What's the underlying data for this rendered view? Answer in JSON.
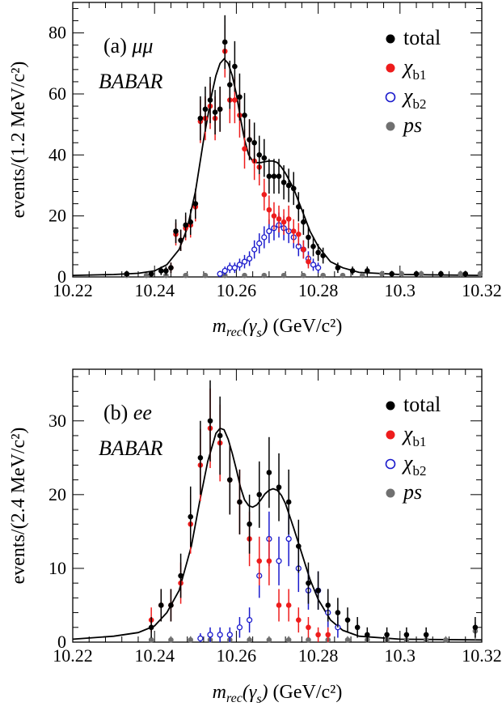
{
  "chart_data": [
    {
      "type": "scatter",
      "panel_label": "(a)",
      "panel_channel": "μμ",
      "experiment": "BABAR",
      "xlabel_var": "m",
      "xlabel_sub": "rec",
      "xlabel_arg": "(γ",
      "xlabel_arg_sub": "s",
      "xlabel_close": ")",
      "xlabel_unit": "(GeV/c²)",
      "ylabel": "events/(1.2 MeV/c²)",
      "xlim": [
        10.22,
        10.32
      ],
      "ylim": [
        0,
        90
      ],
      "xticks": [
        10.22,
        10.24,
        10.26,
        10.28,
        10.3,
        10.32
      ],
      "xtick_labels": [
        "10.22",
        "10.24",
        "10.26",
        "10.28",
        "10.3",
        "10.32"
      ],
      "yticks": [
        0,
        20,
        40,
        60,
        80
      ],
      "ytick_labels": [
        "0",
        "20",
        "40",
        "60",
        "80"
      ],
      "legend": [
        {
          "label": "total",
          "sub": "",
          "color": "#000000",
          "style": "filled"
        },
        {
          "label": "χ",
          "sub": "b1",
          "color": "#ee1c1c",
          "style": "filled"
        },
        {
          "label": "χ",
          "sub": "b2",
          "color": "#1a1acc",
          "style": "open"
        },
        {
          "label": "ps",
          "sub": "",
          "color": "#707070",
          "style": "filled"
        }
      ],
      "series": [
        {
          "name": "total",
          "style": "filled",
          "color": "#000000",
          "x": [
            10.2332,
            10.2392,
            10.2416,
            10.2428,
            10.244,
            10.2452,
            10.2464,
            10.2476,
            10.2488,
            10.25,
            10.2512,
            10.2524,
            10.2536,
            10.2548,
            10.256,
            10.2572,
            10.2584,
            10.2596,
            10.2608,
            10.262,
            10.2632,
            10.2644,
            10.2656,
            10.2668,
            10.268,
            10.2692,
            10.2704,
            10.2716,
            10.2728,
            10.274,
            10.2752,
            10.2764,
            10.2776,
            10.2788,
            10.28,
            10.2812,
            10.2848,
            10.2884,
            10.292,
            10.298,
            10.304,
            10.31,
            10.316
          ],
          "y": [
            1,
            1,
            2,
            2,
            3,
            15,
            12,
            17,
            18,
            24,
            52,
            55,
            58,
            54,
            55,
            77,
            63,
            69,
            59,
            53,
            45,
            44,
            40,
            39,
            33,
            33,
            33,
            31,
            30,
            29,
            23,
            18,
            13,
            10,
            8,
            7,
            3,
            2,
            2,
            1,
            1,
            1,
            1
          ],
          "err": [
            1.0,
            1.0,
            1.4,
            1.4,
            1.7,
            3.9,
            3.5,
            4.1,
            4.2,
            4.9,
            7.2,
            7.4,
            7.6,
            7.3,
            7.4,
            8.8,
            7.9,
            8.3,
            7.7,
            7.3,
            6.7,
            6.6,
            6.3,
            6.2,
            5.7,
            5.7,
            5.7,
            5.6,
            5.5,
            5.4,
            4.8,
            4.2,
            3.6,
            3.2,
            2.8,
            2.6,
            1.7,
            1.4,
            1.4,
            1.0,
            1.0,
            1.0,
            1.0
          ]
        },
        {
          "name": "χ",
          "style": "filled",
          "color": "#ee1c1c",
          "x": [
            10.244,
            10.2452,
            10.2464,
            10.2476,
            10.2488,
            10.25,
            10.2512,
            10.2524,
            10.2536,
            10.2548,
            10.256,
            10.2572,
            10.2584,
            10.2596,
            10.2608,
            10.262,
            10.2632,
            10.2644,
            10.2656,
            10.2668,
            10.268,
            10.2692,
            10.2704,
            10.2716,
            10.2728,
            10.274,
            10.2752,
            10.2764,
            10.2776
          ],
          "y": [
            3,
            14,
            12,
            16,
            17,
            23,
            51,
            52,
            56,
            52,
            55,
            74,
            58,
            58,
            53,
            42,
            45,
            38,
            36,
            27,
            22,
            20,
            19,
            18,
            19,
            15,
            14,
            9,
            5
          ],
          "err": [
            1.7,
            3.7,
            3.5,
            4.0,
            4.1,
            4.8,
            7.1,
            7.2,
            7.5,
            7.2,
            7.4,
            8.6,
            7.6,
            7.6,
            7.3,
            6.5,
            6.7,
            6.2,
            6.0,
            5.2,
            4.7,
            4.5,
            4.4,
            4.2,
            4.4,
            3.9,
            3.7,
            3.0,
            2.2
          ]
        },
        {
          "name": "χ",
          "style": "open",
          "color": "#1a1acc",
          "x": [
            10.256,
            10.2572,
            10.2584,
            10.2596,
            10.2608,
            10.262,
            10.2632,
            10.2644,
            10.2656,
            10.2668,
            10.268,
            10.2692,
            10.2704,
            10.2716,
            10.2728,
            10.274,
            10.2752,
            10.2764,
            10.2776,
            10.2788,
            10.28
          ],
          "y": [
            1,
            2,
            3,
            3,
            4,
            5,
            6,
            9,
            11,
            13,
            15,
            16,
            17,
            16,
            15,
            13,
            10,
            9,
            6,
            4,
            3
          ],
          "err": [
            1.0,
            1.4,
            1.7,
            1.7,
            2.0,
            2.2,
            2.4,
            3.0,
            3.3,
            3.6,
            3.9,
            4.0,
            4.1,
            4.0,
            3.9,
            3.6,
            3.2,
            3.0,
            2.4,
            2.0,
            1.7
          ]
        },
        {
          "name": "ps",
          "style": "filled",
          "color": "#707070",
          "x": [
            10.2332,
            10.238,
            10.2428,
            10.2476,
            10.2524,
            10.2572,
            10.262,
            10.2668,
            10.2716,
            10.2764,
            10.2812,
            10.286,
            10.2908,
            10.2956,
            10.3004,
            10.3052,
            10.31,
            10.3148,
            10.3196
          ],
          "y": [
            0.5,
            0.5,
            0.5,
            0.5,
            0.5,
            0.5,
            0.5,
            0.5,
            0.5,
            0.5,
            0.5,
            0.5,
            0.5,
            1,
            1,
            1,
            1,
            1,
            1
          ],
          "err": [
            0.7,
            0.7,
            0.7,
            0.7,
            0.7,
            0.7,
            0.7,
            0.7,
            0.7,
            0.7,
            0.7,
            0.7,
            0.7,
            1.0,
            1.0,
            1.0,
            1.0,
            1.0,
            1.0
          ]
        }
      ],
      "fit": {
        "x": [
          10.22,
          10.23,
          10.236,
          10.24,
          10.243,
          10.246,
          10.248,
          10.25,
          10.252,
          10.254,
          10.255,
          10.256,
          10.257,
          10.258,
          10.259,
          10.26,
          10.261,
          10.262,
          10.263,
          10.264,
          10.265,
          10.266,
          10.267,
          10.268,
          10.269,
          10.27,
          10.271,
          10.272,
          10.274,
          10.276,
          10.278,
          10.28,
          10.283,
          10.286,
          10.29,
          10.3,
          10.32
        ],
        "y": [
          0.5,
          0.8,
          1.2,
          2,
          4,
          9,
          16,
          28,
          45,
          60,
          66,
          70,
          71.5,
          70,
          66,
          60,
          52,
          45,
          40,
          38,
          37.5,
          37.5,
          37.8,
          38,
          38,
          37.5,
          36,
          34,
          29,
          22,
          15,
          10,
          5,
          3,
          1.5,
          0.8,
          0.5
        ]
      }
    },
    {
      "type": "scatter",
      "panel_label": "(b)",
      "panel_channel": "ee",
      "experiment": "BABAR",
      "xlabel_var": "m",
      "xlabel_sub": "rec",
      "xlabel_arg": "(γ",
      "xlabel_arg_sub": "s",
      "xlabel_close": ")",
      "xlabel_unit": "(GeV/c²)",
      "ylabel": "events/(2.4 MeV/c²)",
      "xlim": [
        10.22,
        10.32
      ],
      "ylim": [
        0,
        37
      ],
      "xticks": [
        10.22,
        10.24,
        10.26,
        10.28,
        10.3,
        10.32
      ],
      "xtick_labels": [
        "10.22",
        "10.24",
        "10.26",
        "10.28",
        "10.3",
        "10.32"
      ],
      "yticks": [
        0,
        10,
        20,
        30
      ],
      "ytick_labels": [
        "0",
        "10",
        "20",
        "30"
      ],
      "legend": [
        {
          "label": "total",
          "sub": "",
          "color": "#000000",
          "style": "filled"
        },
        {
          "label": "χ",
          "sub": "b1",
          "color": "#ee1c1c",
          "style": "filled"
        },
        {
          "label": "χ",
          "sub": "b2",
          "color": "#1a1acc",
          "style": "open"
        },
        {
          "label": "ps",
          "sub": "",
          "color": "#707070",
          "style": "filled"
        }
      ],
      "series": [
        {
          "name": "total",
          "style": "filled",
          "color": "#000000",
          "x": [
            10.2392,
            10.2416,
            10.244,
            10.2464,
            10.2488,
            10.2512,
            10.2536,
            10.256,
            10.2584,
            10.2608,
            10.2632,
            10.2656,
            10.268,
            10.2704,
            10.2728,
            10.2752,
            10.2776,
            10.28,
            10.2824,
            10.2848,
            10.2872,
            10.2896,
            10.292,
            10.2968,
            10.3016,
            10.3064,
            10.3184
          ],
          "y": [
            2,
            5,
            5,
            9,
            17,
            25,
            30,
            28,
            22,
            19,
            16,
            20,
            23,
            21,
            19,
            13,
            8,
            7,
            5,
            4,
            3,
            2,
            1,
            1,
            1,
            1,
            2
          ],
          "err": [
            1.4,
            2.2,
            2.2,
            3.0,
            4.1,
            5.0,
            5.5,
            5.3,
            4.7,
            4.4,
            4.0,
            4.5,
            4.8,
            4.6,
            4.4,
            3.6,
            2.8,
            2.6,
            2.2,
            2.0,
            1.7,
            1.4,
            1.0,
            1.0,
            1.0,
            1.0,
            1.4
          ]
        },
        {
          "name": "χ",
          "style": "filled",
          "color": "#ee1c1c",
          "x": [
            10.2392,
            10.2416,
            10.244,
            10.2464,
            10.2488,
            10.2512,
            10.2536,
            10.256,
            10.2584,
            10.2608,
            10.2632,
            10.2656,
            10.268,
            10.2704,
            10.2728,
            10.2752,
            10.2776,
            10.28,
            10.2824
          ],
          "y": [
            3,
            5,
            5,
            8,
            16,
            24,
            29,
            27,
            22,
            19,
            14,
            11,
            11,
            5,
            5,
            3,
            2,
            1,
            1
          ],
          "err": [
            1.7,
            2.2,
            2.2,
            2.8,
            4.0,
            4.9,
            5.4,
            5.2,
            4.7,
            4.4,
            3.7,
            3.3,
            3.3,
            2.2,
            2.2,
            1.7,
            1.4,
            1.0,
            1.0
          ]
        },
        {
          "name": "χ",
          "style": "open",
          "color": "#1a1acc",
          "x": [
            10.2512,
            10.2536,
            10.256,
            10.2584,
            10.2608,
            10.2632,
            10.2656,
            10.268,
            10.2704,
            10.2728,
            10.2752,
            10.2776,
            10.28,
            10.2824,
            10.2848
          ],
          "y": [
            0.5,
            1,
            1,
            1,
            2,
            3,
            9,
            14,
            11,
            14,
            10,
            7,
            7,
            4,
            2
          ],
          "err": [
            0.7,
            1.0,
            1.0,
            1.0,
            1.4,
            1.7,
            3.0,
            3.7,
            3.3,
            3.7,
            3.2,
            2.6,
            2.6,
            2.0,
            1.4
          ]
        },
        {
          "name": "ps",
          "style": "filled",
          "color": "#707070",
          "x": [
            10.2392,
            10.244,
            10.2488,
            10.2536,
            10.2584,
            10.2632,
            10.268,
            10.2728,
            10.2776,
            10.2824,
            10.2872,
            10.292,
            10.2968,
            10.3016,
            10.3064,
            10.3112,
            10.3184
          ],
          "y": [
            0.3,
            0.3,
            0.3,
            0.3,
            0.3,
            0.3,
            0.3,
            0.3,
            0.3,
            0.3,
            0.3,
            0.3,
            0.3,
            0.3,
            0.3,
            0.3,
            1.5
          ],
          "err": [
            0.5,
            0.5,
            0.5,
            0.5,
            0.5,
            0.5,
            0.5,
            0.5,
            0.5,
            0.5,
            0.5,
            0.5,
            0.5,
            0.5,
            0.5,
            0.5,
            1.2
          ]
        }
      ],
      "fit": {
        "x": [
          10.22,
          10.23,
          10.236,
          10.24,
          10.243,
          10.246,
          10.249,
          10.251,
          10.253,
          10.255,
          10.256,
          10.257,
          10.258,
          10.259,
          10.26,
          10.261,
          10.262,
          10.263,
          10.264,
          10.265,
          10.266,
          10.267,
          10.268,
          10.269,
          10.27,
          10.271,
          10.272,
          10.274,
          10.276,
          10.278,
          10.28,
          10.283,
          10.286,
          10.29,
          10.3,
          10.32
        ],
        "y": [
          0.4,
          0.8,
          1.3,
          2.2,
          4,
          7,
          13,
          19,
          24.5,
          28.3,
          29,
          28.8,
          27.5,
          25.6,
          23.4,
          21,
          19.3,
          18.5,
          18.3,
          18.6,
          19.3,
          20.1,
          20.6,
          20.8,
          20.6,
          19.9,
          18.8,
          15.5,
          12,
          8.5,
          5.8,
          3,
          1.6,
          0.8,
          0.4,
          0.3
        ]
      }
    }
  ]
}
